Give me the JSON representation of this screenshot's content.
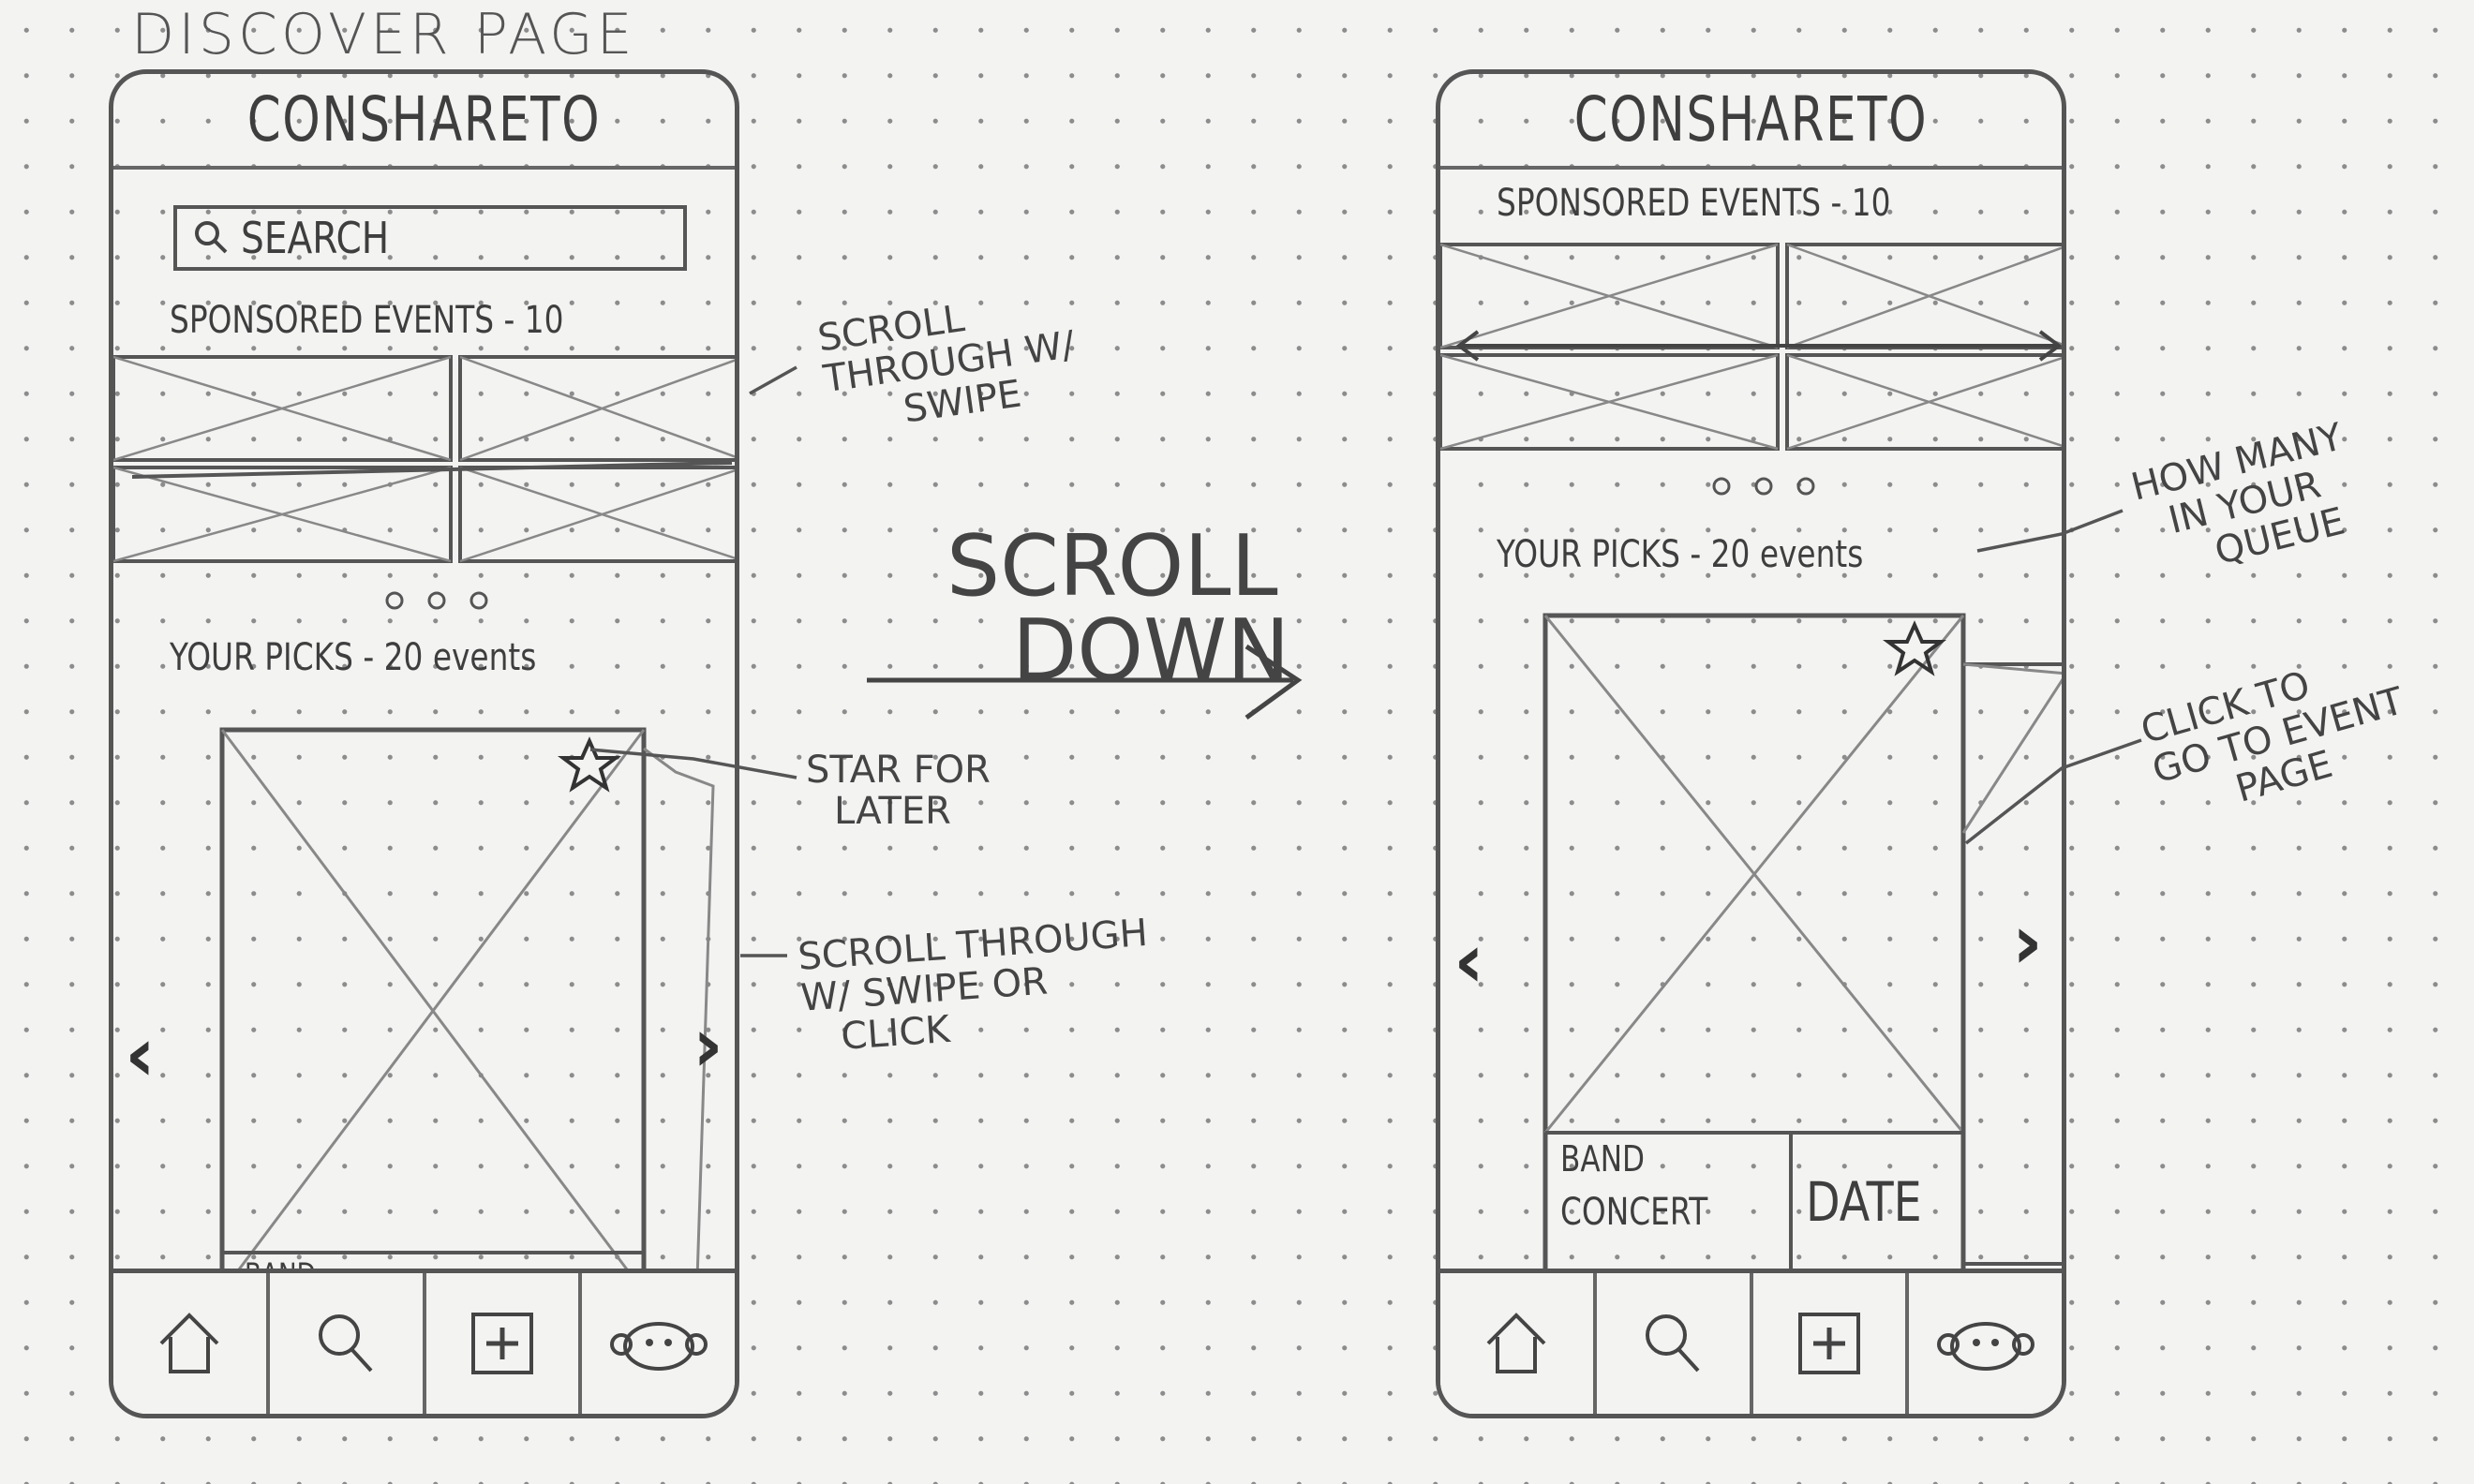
{
  "page_title": "DISCOVER PAGE",
  "phones": [
    {
      "app_title": "CONSHARETO",
      "search_placeholder": "SEARCH",
      "sponsored_label": "SPONSORED EVENTS - 10",
      "picks_label": "YOUR PICKS - 20 events",
      "card_band": "BAND",
      "nav": [
        "home-icon",
        "search-icon",
        "add-icon",
        "profile-icon"
      ]
    },
    {
      "app_title": "CONSHARETO",
      "sponsored_label": "SPONSORED EVENTS - 10",
      "picks_label": "YOUR PICKS - 20 events",
      "card_band": "BAND",
      "card_concert": "CONCERT",
      "card_date": "DATE",
      "nav": [
        "home-icon",
        "search-icon",
        "add-icon",
        "profile-icon"
      ]
    }
  ],
  "annotations": {
    "scroll_swipe": [
      "SCROLL",
      "THROUGH W/",
      "SWIPE"
    ],
    "star_later": [
      "STAR FOR",
      "LATER"
    ],
    "scroll_swipe_click": [
      "SCROLL THROUGH",
      "W/ SWIPE OR",
      "CLICK"
    ],
    "scroll_down": [
      "SCROLL",
      "DOWN"
    ],
    "how_many": [
      "HOW MANY",
      "IN YOUR",
      "QUEUE"
    ],
    "click_event": [
      "CLICK TO",
      "GO TO EVENT",
      "PAGE"
    ]
  }
}
